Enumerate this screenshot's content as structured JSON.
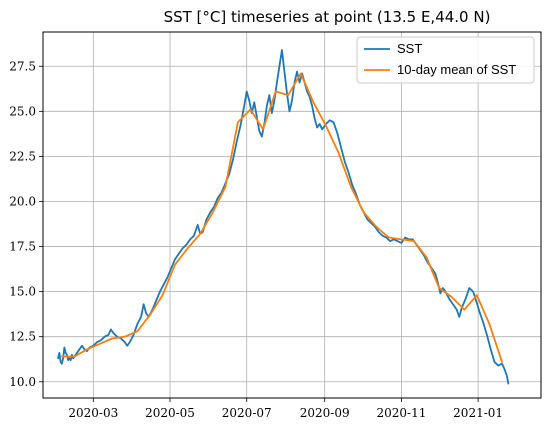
{
  "chart_data": {
    "type": "line",
    "title": "SST [°C] timeseries at point (13.5 E,44.0 N)",
    "xlabel": "",
    "ylabel": "",
    "x_range": [
      "2020-01-21",
      "2021-02-20"
    ],
    "y_range": [
      9.1,
      29.4
    ],
    "x_ticks": [
      "2020-03",
      "2020-05",
      "2020-07",
      "2020-09",
      "2020-11",
      "2021-01"
    ],
    "y_ticks": [
      "10.0",
      "12.5",
      "15.0",
      "17.5",
      "20.0",
      "22.5",
      "25.0",
      "27.5"
    ],
    "grid": true,
    "legend_position": "top-right",
    "series": [
      {
        "name": "SST",
        "color": "#1f77b4",
        "points": [
          [
            "2020-02-02",
            11.3
          ],
          [
            "2020-02-03",
            11.6
          ],
          [
            "2020-02-04",
            11.1
          ],
          [
            "2020-02-05",
            11.0
          ],
          [
            "2020-02-06",
            11.3
          ],
          [
            "2020-02-07",
            11.9
          ],
          [
            "2020-02-08",
            11.6
          ],
          [
            "2020-02-09",
            11.5
          ],
          [
            "2020-02-10",
            11.2
          ],
          [
            "2020-02-11",
            11.3
          ],
          [
            "2020-02-12",
            11.2
          ],
          [
            "2020-02-13",
            11.5
          ],
          [
            "2020-02-14",
            11.3
          ],
          [
            "2020-02-15",
            11.4
          ],
          [
            "2020-02-17",
            11.6
          ],
          [
            "2020-02-19",
            11.8
          ],
          [
            "2020-02-21",
            12.0
          ],
          [
            "2020-02-23",
            11.8
          ],
          [
            "2020-02-25",
            11.7
          ],
          [
            "2020-02-27",
            11.9
          ],
          [
            "2020-03-01",
            12.0
          ],
          [
            "2020-03-04",
            12.2
          ],
          [
            "2020-03-07",
            12.3
          ],
          [
            "2020-03-10",
            12.5
          ],
          [
            "2020-03-13",
            12.6
          ],
          [
            "2020-03-15",
            12.9
          ],
          [
            "2020-03-17",
            12.7
          ],
          [
            "2020-03-20",
            12.5
          ],
          [
            "2020-03-23",
            12.4
          ],
          [
            "2020-03-26",
            12.2
          ],
          [
            "2020-03-28",
            12.0
          ],
          [
            "2020-03-30",
            12.2
          ],
          [
            "2020-04-02",
            12.6
          ],
          [
            "2020-04-05",
            13.2
          ],
          [
            "2020-04-08",
            13.6
          ],
          [
            "2020-04-10",
            14.3
          ],
          [
            "2020-04-12",
            13.8
          ],
          [
            "2020-04-14",
            13.6
          ],
          [
            "2020-04-17",
            14.0
          ],
          [
            "2020-04-20",
            14.5
          ],
          [
            "2020-04-23",
            15.0
          ],
          [
            "2020-04-26",
            15.4
          ],
          [
            "2020-04-29",
            15.8
          ],
          [
            "2020-05-02",
            16.3
          ],
          [
            "2020-05-05",
            16.8
          ],
          [
            "2020-05-08",
            17.1
          ],
          [
            "2020-05-11",
            17.4
          ],
          [
            "2020-05-14",
            17.6
          ],
          [
            "2020-05-17",
            17.9
          ],
          [
            "2020-05-20",
            18.1
          ],
          [
            "2020-05-23",
            18.7
          ],
          [
            "2020-05-25",
            18.2
          ],
          [
            "2020-05-27",
            18.3
          ],
          [
            "2020-05-30",
            19.0
          ],
          [
            "2020-06-02",
            19.4
          ],
          [
            "2020-06-05",
            19.7
          ],
          [
            "2020-06-08",
            20.2
          ],
          [
            "2020-06-11",
            20.5
          ],
          [
            "2020-06-14",
            21.0
          ],
          [
            "2020-06-17",
            21.5
          ],
          [
            "2020-06-20",
            22.3
          ],
          [
            "2020-06-23",
            23.3
          ],
          [
            "2020-06-26",
            24.2
          ],
          [
            "2020-06-29",
            25.3
          ],
          [
            "2020-07-01",
            26.1
          ],
          [
            "2020-07-03",
            25.6
          ],
          [
            "2020-07-05",
            24.9
          ],
          [
            "2020-07-07",
            25.5
          ],
          [
            "2020-07-09",
            24.7
          ],
          [
            "2020-07-11",
            23.9
          ],
          [
            "2020-07-13",
            23.6
          ],
          [
            "2020-07-15",
            24.3
          ],
          [
            "2020-07-17",
            25.3
          ],
          [
            "2020-07-19",
            25.9
          ],
          [
            "2020-07-21",
            24.9
          ],
          [
            "2020-07-23",
            25.6
          ],
          [
            "2020-07-25",
            26.6
          ],
          [
            "2020-07-27",
            27.5
          ],
          [
            "2020-07-29",
            28.4
          ],
          [
            "2020-07-31",
            27.2
          ],
          [
            "2020-08-02",
            26.0
          ],
          [
            "2020-08-04",
            25.0
          ],
          [
            "2020-08-06",
            25.6
          ],
          [
            "2020-08-08",
            26.6
          ],
          [
            "2020-08-10",
            27.2
          ],
          [
            "2020-08-12",
            26.6
          ],
          [
            "2020-08-14",
            27.1
          ],
          [
            "2020-08-16",
            26.6
          ],
          [
            "2020-08-18",
            26.1
          ],
          [
            "2020-08-20",
            25.8
          ],
          [
            "2020-08-22",
            25.3
          ],
          [
            "2020-08-24",
            24.6
          ],
          [
            "2020-08-26",
            24.1
          ],
          [
            "2020-08-28",
            24.3
          ],
          [
            "2020-08-30",
            24.0
          ],
          [
            "2020-09-02",
            24.3
          ],
          [
            "2020-09-05",
            24.5
          ],
          [
            "2020-09-08",
            24.4
          ],
          [
            "2020-09-11",
            23.8
          ],
          [
            "2020-09-14",
            23.0
          ],
          [
            "2020-09-17",
            22.2
          ],
          [
            "2020-09-20",
            21.6
          ],
          [
            "2020-09-23",
            20.9
          ],
          [
            "2020-09-26",
            20.4
          ],
          [
            "2020-09-29",
            19.8
          ],
          [
            "2020-10-02",
            19.4
          ],
          [
            "2020-10-05",
            19.0
          ],
          [
            "2020-10-08",
            18.8
          ],
          [
            "2020-10-11",
            18.6
          ],
          [
            "2020-10-14",
            18.3
          ],
          [
            "2020-10-17",
            18.1
          ],
          [
            "2020-10-20",
            18.0
          ],
          [
            "2020-10-23",
            17.8
          ],
          [
            "2020-10-26",
            17.9
          ],
          [
            "2020-10-29",
            17.8
          ],
          [
            "2020-11-01",
            17.7
          ],
          [
            "2020-11-04",
            18.0
          ],
          [
            "2020-11-07",
            17.9
          ],
          [
            "2020-11-10",
            17.9
          ],
          [
            "2020-11-13",
            17.6
          ],
          [
            "2020-11-16",
            17.3
          ],
          [
            "2020-11-19",
            17.0
          ],
          [
            "2020-11-22",
            16.6
          ],
          [
            "2020-11-25",
            16.3
          ],
          [
            "2020-11-28",
            16.0
          ],
          [
            "2020-11-30",
            15.5
          ],
          [
            "2020-12-02",
            14.9
          ],
          [
            "2020-12-04",
            15.2
          ],
          [
            "2020-12-06",
            15.0
          ],
          [
            "2020-12-09",
            14.6
          ],
          [
            "2020-12-12",
            14.3
          ],
          [
            "2020-12-15",
            14.0
          ],
          [
            "2020-12-17",
            13.6
          ],
          [
            "2020-12-19",
            14.1
          ],
          [
            "2020-12-22",
            14.6
          ],
          [
            "2020-12-25",
            15.2
          ],
          [
            "2020-12-28",
            15.0
          ],
          [
            "2020-12-30",
            14.6
          ],
          [
            "2021-01-02",
            13.9
          ],
          [
            "2021-01-05",
            13.3
          ],
          [
            "2021-01-08",
            12.6
          ],
          [
            "2021-01-11",
            11.8
          ],
          [
            "2021-01-14",
            11.1
          ],
          [
            "2021-01-17",
            10.9
          ],
          [
            "2021-01-20",
            11.0
          ],
          [
            "2021-01-22",
            10.7
          ],
          [
            "2021-01-24",
            10.3
          ],
          [
            "2021-01-25",
            9.9
          ]
        ]
      },
      {
        "name": "10-day mean of SST",
        "color": "#ff7f0e",
        "points": [
          [
            "2020-02-05",
            11.4
          ],
          [
            "2020-02-15",
            11.4
          ],
          [
            "2020-02-25",
            11.8
          ],
          [
            "2020-03-06",
            12.1
          ],
          [
            "2020-03-16",
            12.4
          ],
          [
            "2020-03-26",
            12.5
          ],
          [
            "2020-04-05",
            12.8
          ],
          [
            "2020-04-15",
            13.7
          ],
          [
            "2020-04-25",
            14.8
          ],
          [
            "2020-05-05",
            16.5
          ],
          [
            "2020-05-15",
            17.4
          ],
          [
            "2020-05-25",
            18.2
          ],
          [
            "2020-06-04",
            19.4
          ],
          [
            "2020-06-14",
            20.8
          ],
          [
            "2020-06-24",
            24.4
          ],
          [
            "2020-07-04",
            25.1
          ],
          [
            "2020-07-14",
            24.0
          ],
          [
            "2020-07-24",
            26.1
          ],
          [
            "2020-08-03",
            25.9
          ],
          [
            "2020-08-13",
            27.1
          ],
          [
            "2020-08-23",
            25.5
          ],
          [
            "2020-09-02",
            24.2
          ],
          [
            "2020-09-12",
            22.7
          ],
          [
            "2020-09-22",
            20.8
          ],
          [
            "2020-10-02",
            19.4
          ],
          [
            "2020-10-12",
            18.6
          ],
          [
            "2020-10-22",
            18.0
          ],
          [
            "2020-11-01",
            17.9
          ],
          [
            "2020-11-11",
            17.8
          ],
          [
            "2020-11-21",
            16.9
          ],
          [
            "2020-12-01",
            15.2
          ],
          [
            "2020-12-11",
            14.7
          ],
          [
            "2020-12-21",
            14.0
          ],
          [
            "2020-12-31",
            14.8
          ],
          [
            "2021-01-10",
            13.2
          ],
          [
            "2021-01-20",
            11.1
          ]
        ]
      }
    ]
  }
}
